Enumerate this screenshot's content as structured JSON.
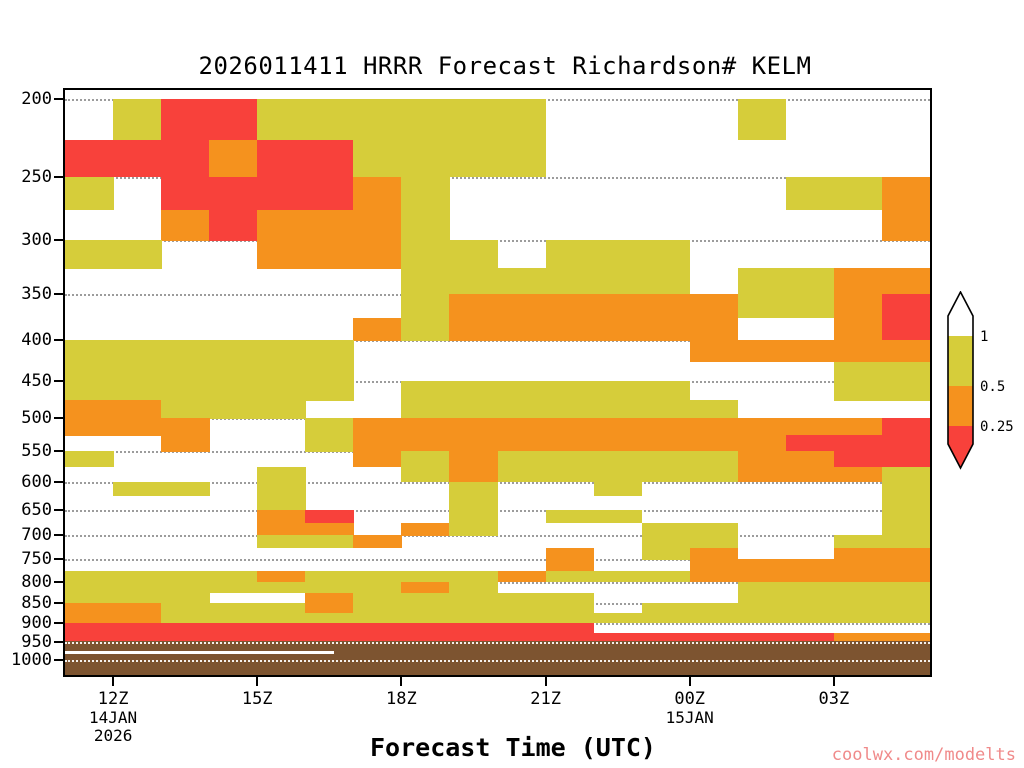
{
  "chart_data": {
    "type": "heatmap",
    "title": "2026011411 HRRR Forecast Richardson# KELM",
    "xlabel": "Forecast Time (UTC)",
    "watermark": "coolwx.com/modelts",
    "y_axis": "pressure_hPa",
    "y_scale": "log-pressure",
    "y_ticks": [
      "200",
      "250",
      "300",
      "350",
      "400",
      "450",
      "500",
      "550",
      "600",
      "650",
      "700",
      "750",
      "800",
      "850",
      "900",
      "950",
      "1000"
    ],
    "p_top": 195,
    "p_bottom": 1045,
    "hours": 18,
    "x_ticks": [
      {
        "label": "12Z",
        "hour": 1
      },
      {
        "label": "15Z",
        "hour": 4
      },
      {
        "label": "18Z",
        "hour": 7
      },
      {
        "label": "21Z",
        "hour": 10
      },
      {
        "label": "00Z",
        "hour": 13
      },
      {
        "label": "03Z",
        "hour": 16
      }
    ],
    "x_date_labels": [
      {
        "hour": 1,
        "lines": [
          "14JAN",
          "2026"
        ]
      },
      {
        "hour": 13,
        "lines": [
          "15JAN"
        ]
      }
    ],
    "legend_labels": [
      "1",
      "0.5",
      "0.25"
    ],
    "colors": {
      "y": "#d6cd3a",
      "o": "#f5921e",
      "r": "#f8413b",
      "b": "#7d5430",
      "grid": "#9c9c9c"
    },
    "cell_legend": {
      "y": "Richardson 0.5 to 1 (yellow)",
      "o": "Richardson 0.25 to 0.5 (orange)",
      "r": "Richardson below 0.25 (red)",
      "b": "below ground (brown)",
      ".": "above 1 / clear (white)"
    },
    "rows": [
      {
        "p_top": 200,
        "p_bot": 225,
        "cells": ".yrryyyyyy....y..."
      },
      {
        "p_top": 225,
        "p_bot": 250,
        "cells": "rrrorryyyy........"
      },
      {
        "p_top": 250,
        "p_bot": 275,
        "cells": "y.rrrroy.......yyo"
      },
      {
        "p_top": 275,
        "p_bot": 300,
        "cells": "..oroooy.........o"
      },
      {
        "p_top": 300,
        "p_bot": 325,
        "cells": "yy..oooyy.yyy....."
      },
      {
        "p_top": 325,
        "p_bot": 350,
        "cells": ".......yyyyyy.yyoo"
      },
      {
        "p_top": 350,
        "p_bot": 375,
        "cells": ".......yooooooyyor"
      },
      {
        "p_top": 375,
        "p_bot": 400,
        "cells": "......oyoooooo..or"
      },
      {
        "p_top": 400,
        "p_bot": 425,
        "cells": "yyyyyy.......ooooo"
      },
      {
        "p_top": 425,
        "p_bot": 450,
        "cells": "yyyyyy..........yy"
      },
      {
        "p_top": 450,
        "p_bot": 475,
        "cells": "yyyyyy.yyyyyy...yy"
      },
      {
        "p_top": 475,
        "p_bot": 500,
        "cells": "ooyyy..yyyyyyy...."
      },
      {
        "p_top": 500,
        "p_bot": 525,
        "cells": "ooo..yooooooooooor"
      },
      {
        "p_top": 525,
        "p_bot": 550,
        "cells": "..o..yooooooooorrr"
      },
      {
        "p_top": 550,
        "p_bot": 575,
        "cells": "y.....oyoyyyyyoorr"
      },
      {
        "p_top": 575,
        "p_bot": 600,
        "cells": "....y..yoyyyyyoooy"
      },
      {
        "p_top": 600,
        "p_bot": 625,
        "cells": ".yy.y...y..y.....y"
      },
      {
        "p_top": 625,
        "p_bot": 650,
        "cells": "....y...y........y"
      },
      {
        "p_top": 650,
        "p_bot": 675,
        "cells": "....or..y.yy.....y"
      },
      {
        "p_top": 675,
        "p_bot": 700,
        "cells": "....oo.oy...yy...y"
      },
      {
        "p_top": 700,
        "p_bot": 725,
        "cells": "....yyo.....yy..yy"
      },
      {
        "p_top": 725,
        "p_bot": 750,
        "cells": "..........o.yo..oo"
      },
      {
        "p_top": 750,
        "p_bot": 775,
        "cells": "..........o..ooooo"
      },
      {
        "p_top": 775,
        "p_bot": 800,
        "cells": "yyyyoyyyyoyyyooooo"
      },
      {
        "p_top": 800,
        "p_bot": 825,
        "cells": "yyyyyyyoy.....yyyy"
      },
      {
        "p_top": 825,
        "p_bot": 850,
        "cells": "yyy..oyyyyy...yyyy"
      },
      {
        "p_top": 850,
        "p_bot": 875,
        "cells": "ooyyyoyyyyy.yyyyyy"
      },
      {
        "p_top": 875,
        "p_bot": 900,
        "cells": "ooyyyyyyyyyyyyyyyy"
      },
      {
        "p_top": 900,
        "p_bot": 925,
        "cells": "rrrrrrrrrrr......."
      },
      {
        "p_top": 925,
        "p_bot": 950,
        "cells": "rrrrrrrrrrrrrrrroo"
      }
    ],
    "ground": {
      "p_top": 948,
      "p_bot": 1045
    },
    "surface_line": {
      "pressure": 975,
      "h0": 0,
      "h1": 5.6
    }
  }
}
